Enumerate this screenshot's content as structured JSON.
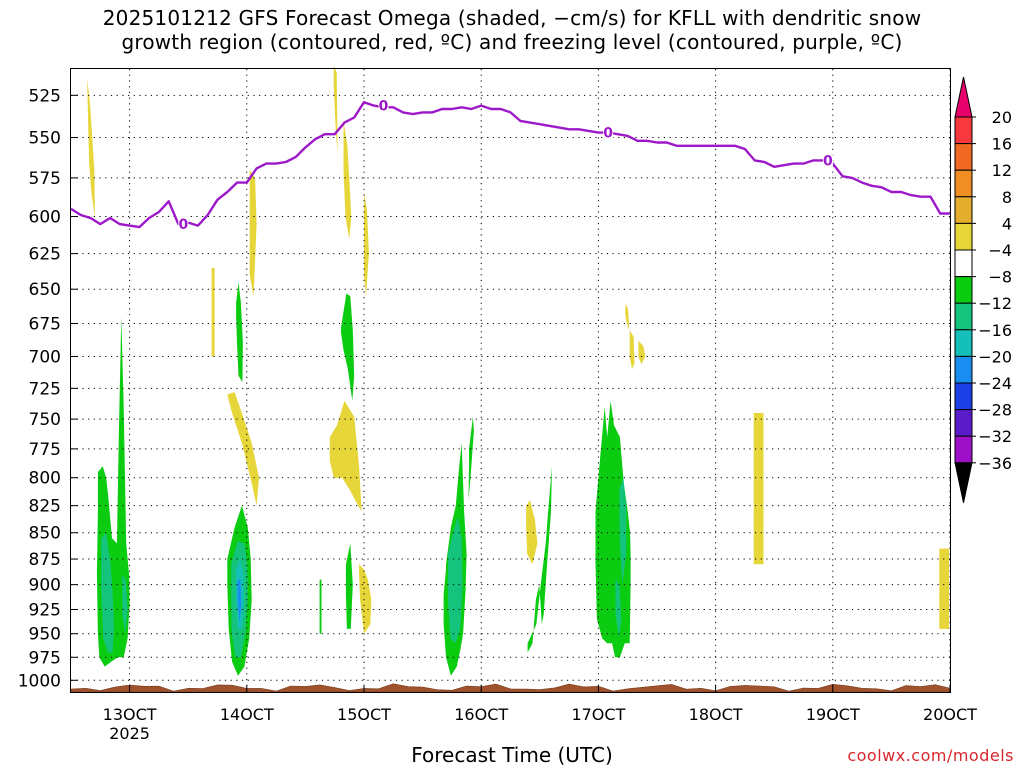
{
  "title_line1": "2025101212 GFS Forecast Omega (shaded, −cm/s) for KFLL with dendritic snow",
  "title_line2": "growth region (contoured, red, ºC) and freezing level (contoured, purple, ºC)",
  "credit": "coolwx.com/models",
  "chart_data": {
    "type": "heatmap",
    "title": "2025101212 GFS Forecast Omega (shaded, −cm/s) for KFLL with dendritic snow growth region (contoured, red, ºC) and freezing level (contoured, purple, ºC)",
    "xlabel": "Forecast Time (UTC)",
    "ylabel": "",
    "x_unit": "hours since 2025-10-12 12Z",
    "xlim": [
      0,
      180
    ],
    "x_ticks": [
      {
        "x": 12,
        "label": "13OCT",
        "sub": "2025"
      },
      {
        "x": 36,
        "label": "14OCT",
        "sub": ""
      },
      {
        "x": 60,
        "label": "15OCT",
        "sub": ""
      },
      {
        "x": 84,
        "label": "16OCT",
        "sub": ""
      },
      {
        "x": 108,
        "label": "17OCT",
        "sub": ""
      },
      {
        "x": 132,
        "label": "18OCT",
        "sub": ""
      },
      {
        "x": 156,
        "label": "19OCT",
        "sub": ""
      },
      {
        "x": 180,
        "label": "20OCT",
        "sub": ""
      }
    ],
    "ylim": [
      1013,
      510
    ],
    "y_scale": "log-pressure (hPa)",
    "y_ticks": [
      525,
      550,
      575,
      600,
      625,
      650,
      675,
      700,
      725,
      750,
      775,
      800,
      825,
      850,
      875,
      900,
      925,
      950,
      975,
      1000
    ],
    "grid": true,
    "colorbar": {
      "levels": [
        "20",
        "16",
        "12",
        "8",
        "4",
        "−4",
        "−8",
        "−12",
        "−16",
        "−20",
        "−24",
        "−28",
        "−32",
        "−36"
      ],
      "colors": [
        "#e8006c",
        "#f7383c",
        "#f06a24",
        "#ef8e22",
        "#e3ae2e",
        "#e6d63a",
        "#ffffff",
        "#0ccc12",
        "#14c47c",
        "#14c0b8",
        "#1a8ef0",
        "#1d40e6",
        "#5a1cc8",
        "#9e10c8",
        "#a6a6a6",
        "#000000"
      ]
    },
    "freezing_level": {
      "label": "0",
      "color": "#9d18c9",
      "x": [
        0,
        2,
        4,
        6,
        8,
        10,
        12,
        14,
        16,
        18,
        20,
        22,
        24,
        26,
        28,
        30,
        32,
        34,
        36,
        38,
        40,
        42,
        44,
        46,
        48,
        50,
        52,
        54,
        56,
        58,
        60,
        62,
        64,
        66,
        68,
        70,
        72,
        74,
        76,
        78,
        80,
        82,
        84,
        86,
        88,
        90,
        92,
        94,
        96,
        98,
        100,
        102,
        104,
        106,
        108,
        110,
        112,
        114,
        116,
        118,
        120,
        122,
        124,
        126,
        128,
        130,
        132,
        134,
        136,
        138,
        140,
        142,
        144,
        146,
        148,
        150,
        152,
        154,
        156,
        158,
        160,
        162,
        164,
        166,
        168,
        170,
        172,
        174,
        176,
        178,
        180
      ],
      "y": [
        595,
        599,
        601,
        605,
        601,
        605,
        606,
        607,
        601,
        597,
        590,
        605,
        604,
        606,
        599,
        589,
        584,
        578,
        578,
        569,
        566,
        566,
        565,
        562,
        556,
        551,
        548,
        548,
        541,
        538,
        529,
        531,
        532,
        532,
        535,
        536,
        535,
        535,
        533,
        533,
        532,
        533,
        531,
        533,
        533,
        535,
        540,
        541,
        542,
        543,
        544,
        545,
        545,
        546,
        547,
        547,
        548,
        549,
        552,
        552,
        553,
        553,
        555,
        555,
        555,
        555,
        555,
        555,
        555,
        557,
        564,
        565,
        568,
        567,
        566,
        566,
        564,
        564,
        566,
        574,
        575,
        578,
        580,
        581,
        584,
        584,
        586,
        587,
        587,
        598,
        598
      ]
    },
    "omega_regions": [
      {
        "value": "4",
        "color": "#e6d63a",
        "x": [
          3.3,
          3.5,
          3.7,
          4.2,
          4.9,
          4.8,
          3.9,
          3.3
        ],
        "y": [
          515,
          540,
          565,
          585,
          600,
          570,
          530,
          515
        ]
      },
      {
        "value": "4",
        "color": "#e6d63a",
        "x": [
          32,
          33,
          35,
          37,
          38,
          38.5,
          37,
          35,
          33.5,
          32
        ],
        "y": [
          730,
          745,
          770,
          805,
          825,
          800,
          770,
          745,
          728,
          730
        ]
      },
      {
        "value": "4",
        "color": "#e6d63a",
        "x": [
          28.8,
          29.4,
          29.4,
          28.8
        ],
        "y": [
          635,
          635,
          700,
          700
        ]
      },
      {
        "value": "4",
        "color": "#e6d63a",
        "x": [
          36.6,
          37.7,
          38,
          37.4,
          36.6
        ],
        "y": [
          570,
          575,
          605,
          655,
          640
        ]
      },
      {
        "value": "4",
        "color": "#e6d63a",
        "x": [
          53.8,
          54.4,
          54.6,
          54.2,
          53.8
        ],
        "y": [
          508,
          512,
          560,
          545,
          520
        ]
      },
      {
        "value": "4",
        "color": "#e6d63a",
        "x": [
          55.8,
          56.6,
          57,
          57.4,
          57,
          56.2,
          55.8
        ],
        "y": [
          540,
          555,
          575,
          600,
          615,
          600,
          570
        ]
      },
      {
        "value": "4",
        "color": "#e6d63a",
        "x": [
          60,
          60.6,
          61,
          60.4,
          60
        ],
        "y": [
          585,
          595,
          625,
          655,
          640
        ]
      },
      {
        "value": "4",
        "color": "#e6d63a",
        "x": [
          53,
          54.5,
          56,
          58,
          59,
          59.5,
          58.8,
          57,
          55.5,
          53.8,
          53
        ],
        "y": [
          765,
          755,
          735,
          748,
          790,
          830,
          825,
          810,
          800,
          800,
          785
        ]
      },
      {
        "value": "4",
        "color": "#e6d63a",
        "x": [
          59,
          60,
          60.8,
          61.5,
          61.3,
          60,
          59.2,
          59
        ],
        "y": [
          880,
          885,
          895,
          915,
          940,
          950,
          915,
          890
        ]
      },
      {
        "value": "4",
        "color": "#e6d63a",
        "x": [
          93.2,
          94,
          95,
          95.5,
          94.5,
          93.4,
          93.2
        ],
        "y": [
          825,
          820,
          838,
          860,
          880,
          870,
          845
        ]
      },
      {
        "value": "4",
        "color": "#e6d63a",
        "x": [
          113.5,
          114.1,
          114.3,
          113.8,
          113.5
        ],
        "y": [
          660,
          665,
          680,
          675,
          668
        ]
      },
      {
        "value": "4",
        "color": "#e6d63a",
        "x": [
          114.4,
          115.2,
          115.4,
          114.9,
          114.4
        ],
        "y": [
          680,
          685,
          705,
          710,
          700
        ]
      },
      {
        "value": "4",
        "color": "#e6d63a",
        "x": [
          116.2,
          117.2,
          117.6,
          116.8,
          116.2
        ],
        "y": [
          688,
          692,
          700,
          706,
          700
        ]
      },
      {
        "value": "4",
        "color": "#e6d63a",
        "x": [
          139.8,
          141.8,
          141.8,
          139.8
        ],
        "y": [
          745,
          745,
          880,
          880
        ]
      },
      {
        "value": "4",
        "color": "#e6d63a",
        "x": [
          177.8,
          179.8,
          179.8,
          177.8
        ],
        "y": [
          865,
          865,
          945,
          945
        ]
      },
      {
        "value": "−4",
        "color": "#0ccc12",
        "x": [
          5.5,
          6.5,
          7.2,
          7.7,
          8.4,
          9.4,
          9.8,
          10.3,
          10.8,
          11.3,
          11.9,
          12,
          11.6,
          10.8,
          9.6,
          8.2,
          6.9,
          5.8,
          5.5,
          5.3,
          5.5
        ],
        "y": [
          795,
          790,
          800,
          820,
          855,
          860,
          760,
          670,
          740,
          860,
          890,
          920,
          955,
          975,
          975,
          980,
          985,
          975,
          950,
          890,
          830
        ]
      },
      {
        "value": "−4",
        "color": "#0ccc12",
        "x": [
          32,
          33.5,
          35,
          36.2,
          36.8,
          37,
          36.5,
          35.5,
          34.2,
          33,
          32.3,
          32
        ],
        "y": [
          875,
          845,
          825,
          845,
          875,
          915,
          955,
          985,
          995,
          980,
          945,
          900
        ]
      },
      {
        "value": "−4",
        "color": "#0ccc12",
        "x": [
          33.8,
          34.3,
          34.8,
          35.2,
          35.1,
          34.3,
          34,
          33.8
        ],
        "y": [
          660,
          645,
          660,
          690,
          720,
          715,
          690,
          670
        ]
      },
      {
        "value": "−4",
        "color": "#0ccc12",
        "x": [
          55.3,
          56.4,
          57.2,
          57.7,
          58,
          57.6,
          56.7,
          55.8,
          55.3
        ],
        "y": [
          678,
          653,
          655,
          680,
          715,
          735,
          710,
          695,
          682
        ]
      },
      {
        "value": "−4",
        "color": "#0ccc12",
        "x": [
          56.3,
          57.2,
          57.7,
          57.3,
          56.5,
          56.3
        ],
        "y": [
          880,
          860,
          900,
          945,
          945,
          910
        ]
      },
      {
        "value": "−4",
        "color": "#0ccc12",
        "x": [
          50.9,
          51.3,
          51.3,
          50.9
        ],
        "y": [
          895,
          895,
          950,
          950
        ]
      },
      {
        "value": "−4",
        "color": "#0ccc12",
        "x": [
          76.8,
          77.8,
          78.8,
          79.5,
          80,
          80.5,
          81,
          80.8,
          80.3,
          79.8,
          79,
          77.8,
          76.8,
          76.3,
          76.3,
          76.8
        ],
        "y": [
          880,
          845,
          825,
          790,
          770,
          830,
          870,
          905,
          950,
          965,
          985,
          995,
          975,
          940,
          910,
          885
        ]
      },
      {
        "value": "−4",
        "color": "#0ccc12",
        "x": [
          81.5,
          82.3,
          82.5,
          81.8,
          81.4,
          81.5
        ],
        "y": [
          775,
          748,
          760,
          800,
          820,
          790
        ]
      },
      {
        "value": "−4",
        "color": "#0ccc12",
        "x": [
          93.5,
          95.3,
          96.3,
          97.2,
          97.8,
          98.2,
          98.5,
          98.3,
          97.5,
          96.8,
          96.4,
          95.9,
          95.2,
          94.5,
          93.5
        ],
        "y": [
          960,
          940,
          895,
          860,
          825,
          805,
          790,
          830,
          880,
          930,
          940,
          900,
          915,
          960,
          970
        ]
      },
      {
        "value": "−4",
        "color": "#0ccc12",
        "x": [
          107.4,
          108.4,
          109.3,
          109.8,
          110.5,
          111.2,
          112.4,
          113.2,
          114,
          114.5,
          114.6,
          114.6,
          114.4,
          113.4,
          112.4,
          111.4,
          110.8,
          109.8,
          108.8,
          107.7,
          107.4
        ],
        "y": [
          830,
          780,
          740,
          765,
          735,
          755,
          765,
          805,
          830,
          850,
          870,
          900,
          960,
          960,
          975,
          975,
          960,
          960,
          955,
          935,
          880
        ]
      },
      {
        "value": "−8",
        "color": "#14c47c",
        "x": [
          6.2,
          7.2,
          8.1,
          8.6,
          8.8,
          8.5,
          7.6,
          6.6,
          6.2
        ],
        "y": [
          855,
          850,
          880,
          915,
          945,
          970,
          970,
          955,
          905
        ]
      },
      {
        "value": "−8",
        "color": "#14c47c",
        "x": [
          10.5,
          11.2,
          11.6,
          11.1,
          10.5
        ],
        "y": [
          890,
          895,
          925,
          950,
          930
        ]
      },
      {
        "value": "−8",
        "color": "#14c47c",
        "x": [
          32.8,
          34.1,
          35.5,
          36.1,
          36.2,
          35.7,
          34.8,
          33.7,
          32.9,
          32.8
        ],
        "y": [
          880,
          858,
          860,
          880,
          915,
          950,
          975,
          975,
          950,
          910
        ]
      },
      {
        "value": "−8",
        "color": "#14c47c",
        "x": [
          77.2,
          78.2,
          79.2,
          80,
          80.2,
          79.7,
          78.7,
          77.7,
          77.2
        ],
        "y": [
          870,
          850,
          835,
          855,
          900,
          945,
          960,
          955,
          915
        ]
      },
      {
        "value": "−8",
        "color": "#14c47c",
        "x": [
          112.3,
          113.1,
          113.7,
          113.7,
          112.9,
          112.4,
          112.3
        ],
        "y": [
          810,
          800,
          825,
          870,
          900,
          860,
          830
        ]
      },
      {
        "value": "−8",
        "color": "#14c47c",
        "x": [
          111.5,
          112.3,
          112.7,
          112.2,
          111.5
        ],
        "y": [
          895,
          900,
          935,
          955,
          930
        ]
      },
      {
        "value": "−12",
        "color": "#14c0b8",
        "x": [
          33.8,
          34.6,
          35.3,
          35.4,
          35,
          34.2,
          33.8
        ],
        "y": [
          885,
          875,
          890,
          920,
          945,
          945,
          915
        ]
      },
      {
        "value": "−16",
        "color": "#1a8ef0",
        "x": [
          34.1,
          34.7,
          34.9,
          34.5,
          34.1
        ],
        "y": [
          895,
          895,
          920,
          938,
          915
        ]
      }
    ]
  }
}
